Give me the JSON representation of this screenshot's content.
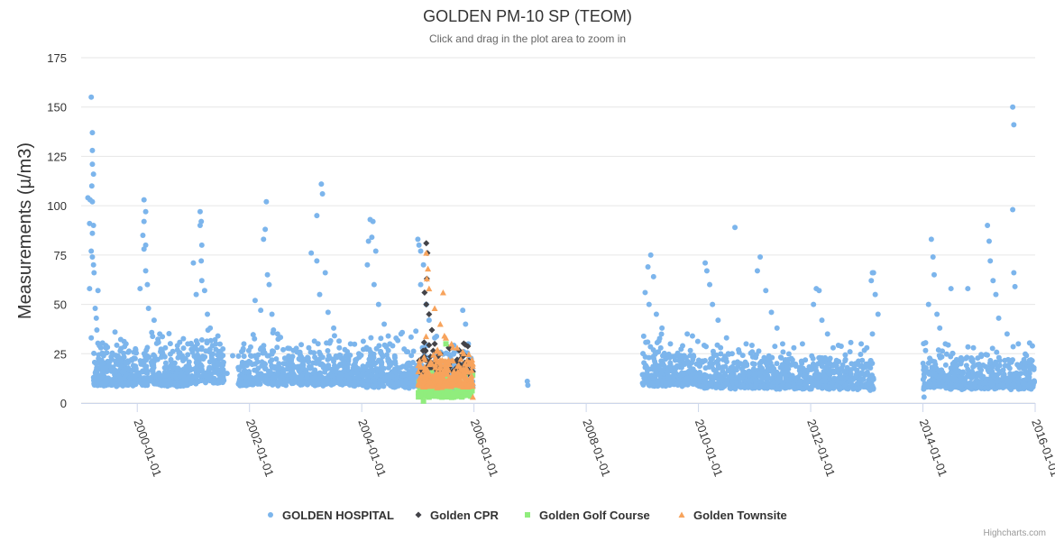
{
  "chart_data": {
    "type": "scatter",
    "title": "GOLDEN PM-10 SP (TEOM)",
    "subtitle": "Click and drag in the plot area to zoom in",
    "ylabel": "Measurements (µ/m3)",
    "xlabel": "",
    "x_range": [
      1999.0,
      2016.0
    ],
    "ylim": [
      0,
      175
    ],
    "yticks": [
      0,
      25,
      50,
      75,
      100,
      125,
      150,
      175
    ],
    "xticks": [
      {
        "value": 2000.0,
        "label": "2000-01-01"
      },
      {
        "value": 2002.0,
        "label": "2002-01-01"
      },
      {
        "value": 2004.0,
        "label": "2004-01-01"
      },
      {
        "value": 2006.0,
        "label": "2006-01-01"
      },
      {
        "value": 2008.0,
        "label": "2008-01-01"
      },
      {
        "value": 2010.0,
        "label": "2010-01-01"
      },
      {
        "value": 2012.0,
        "label": "2012-01-01"
      },
      {
        "value": 2014.0,
        "label": "2014-01-01"
      },
      {
        "value": 2016.0,
        "label": "2016-01-01"
      }
    ],
    "grid": true,
    "legend_position": "bottom-center",
    "credit": "Highcharts.com",
    "series": [
      {
        "name": "GOLDEN HOSPITAL",
        "color": "#7cb5ec",
        "marker": "circle",
        "points": [
          [
            1999.12,
            104
          ],
          [
            1999.18,
            155
          ],
          [
            1999.2,
            137
          ],
          [
            1999.2,
            128
          ],
          [
            1999.2,
            121
          ],
          [
            1999.22,
            116
          ],
          [
            1999.19,
            110
          ],
          [
            1999.16,
            103
          ],
          [
            1999.2,
            102
          ],
          [
            1999.15,
            91
          ],
          [
            1999.22,
            90
          ],
          [
            1999.2,
            86
          ],
          [
            1999.18,
            77
          ],
          [
            1999.2,
            74
          ],
          [
            1999.22,
            70
          ],
          [
            1999.23,
            66
          ],
          [
            1999.15,
            58
          ],
          [
            1999.3,
            57
          ],
          [
            1999.25,
            48
          ],
          [
            1999.27,
            43
          ],
          [
            1999.28,
            37
          ],
          [
            1999.18,
            33
          ],
          [
            1999.35,
            28
          ],
          [
            1999.4,
            24
          ],
          [
            1999.5,
            19
          ],
          [
            1999.6,
            15
          ],
          [
            1999.7,
            12
          ],
          [
            1999.8,
            30
          ],
          [
            1999.9,
            22
          ],
          [
            1999.95,
            18
          ],
          [
            2000.12,
            103
          ],
          [
            2000.15,
            97
          ],
          [
            2000.12,
            92
          ],
          [
            2000.1,
            85
          ],
          [
            2000.15,
            80
          ],
          [
            2000.12,
            78
          ],
          [
            2000.15,
            67
          ],
          [
            2000.18,
            60
          ],
          [
            2000.05,
            58
          ],
          [
            2000.2,
            48
          ],
          [
            2000.3,
            42
          ],
          [
            2000.4,
            35
          ],
          [
            2000.5,
            28
          ],
          [
            2000.6,
            22
          ],
          [
            2000.7,
            15
          ],
          [
            2000.8,
            24
          ],
          [
            2000.9,
            30
          ],
          [
            2000.95,
            10
          ],
          [
            2001.12,
            97
          ],
          [
            2001.14,
            92
          ],
          [
            2001.12,
            90
          ],
          [
            2001.15,
            80
          ],
          [
            2001.14,
            72
          ],
          [
            2001.0,
            71
          ],
          [
            2001.15,
            62
          ],
          [
            2001.2,
            57
          ],
          [
            2001.05,
            55
          ],
          [
            2001.25,
            45
          ],
          [
            2001.3,
            38
          ],
          [
            2001.4,
            30
          ],
          [
            2001.5,
            20
          ],
          [
            2001.6,
            15
          ],
          [
            2001.7,
            24
          ],
          [
            2001.8,
            18
          ],
          [
            2001.9,
            30
          ],
          [
            2002.3,
            102
          ],
          [
            2002.28,
            88
          ],
          [
            2002.25,
            83
          ],
          [
            2002.32,
            65
          ],
          [
            2002.35,
            60
          ],
          [
            2002.1,
            52
          ],
          [
            2002.2,
            47
          ],
          [
            2002.4,
            45
          ],
          [
            2002.5,
            35
          ],
          [
            2002.6,
            27
          ],
          [
            2002.7,
            20
          ],
          [
            2002.8,
            14
          ],
          [
            2002.9,
            22
          ],
          [
            2003.28,
            111
          ],
          [
            2003.3,
            106
          ],
          [
            2003.2,
            95
          ],
          [
            2003.1,
            76
          ],
          [
            2003.2,
            72
          ],
          [
            2003.35,
            66
          ],
          [
            2003.25,
            55
          ],
          [
            2003.4,
            46
          ],
          [
            2003.5,
            38
          ],
          [
            2003.6,
            28
          ],
          [
            2003.7,
            20
          ],
          [
            2003.8,
            30
          ],
          [
            2003.9,
            15
          ],
          [
            2004.15,
            93
          ],
          [
            2004.2,
            92
          ],
          [
            2004.18,
            84
          ],
          [
            2004.12,
            82
          ],
          [
            2004.25,
            77
          ],
          [
            2004.1,
            70
          ],
          [
            2004.22,
            60
          ],
          [
            2004.3,
            50
          ],
          [
            2004.4,
            40
          ],
          [
            2004.5,
            30
          ],
          [
            2004.6,
            20
          ],
          [
            2004.7,
            35
          ],
          [
            2004.8,
            26
          ],
          [
            2004.9,
            16
          ],
          [
            2005.0,
            83
          ],
          [
            2005.02,
            80
          ],
          [
            2005.05,
            77
          ],
          [
            2005.1,
            70
          ],
          [
            2005.05,
            60
          ],
          [
            2005.15,
            50
          ],
          [
            2005.2,
            42
          ],
          [
            2005.3,
            33
          ],
          [
            2005.4,
            25
          ],
          [
            2005.5,
            18
          ],
          [
            2005.6,
            28
          ],
          [
            2005.7,
            21
          ],
          [
            2005.8,
            47
          ],
          [
            2005.85,
            40
          ],
          [
            2005.9,
            30
          ],
          [
            2005.95,
            22
          ],
          [
            2005.98,
            8
          ],
          [
            2006.95,
            11
          ],
          [
            2006.96,
            9
          ],
          [
            2009.15,
            75
          ],
          [
            2009.1,
            69
          ],
          [
            2009.2,
            64
          ],
          [
            2009.05,
            56
          ],
          [
            2009.12,
            50
          ],
          [
            2009.25,
            45
          ],
          [
            2009.35,
            38
          ],
          [
            2009.5,
            30
          ],
          [
            2009.6,
            24
          ],
          [
            2009.7,
            18
          ],
          [
            2009.8,
            35
          ],
          [
            2009.9,
            22
          ],
          [
            2010.12,
            71
          ],
          [
            2010.15,
            67
          ],
          [
            2010.2,
            60
          ],
          [
            2010.25,
            50
          ],
          [
            2010.35,
            42
          ],
          [
            2010.5,
            33
          ],
          [
            2010.6,
            25
          ],
          [
            2010.65,
            89
          ],
          [
            2010.75,
            20
          ],
          [
            2010.85,
            30
          ],
          [
            2010.9,
            15
          ],
          [
            2011.1,
            74
          ],
          [
            2011.05,
            67
          ],
          [
            2011.2,
            57
          ],
          [
            2011.3,
            46
          ],
          [
            2011.4,
            38
          ],
          [
            2011.5,
            30
          ],
          [
            2011.6,
            22
          ],
          [
            2011.7,
            28
          ],
          [
            2011.8,
            18
          ],
          [
            2011.9,
            14
          ],
          [
            2012.1,
            58
          ],
          [
            2012.15,
            57
          ],
          [
            2012.05,
            50
          ],
          [
            2012.2,
            42
          ],
          [
            2012.3,
            35
          ],
          [
            2012.4,
            28
          ],
          [
            2012.5,
            21
          ],
          [
            2012.6,
            16
          ],
          [
            2012.7,
            26
          ],
          [
            2012.8,
            20
          ],
          [
            2012.9,
            30
          ],
          [
            2013.1,
            66
          ],
          [
            2013.12,
            66
          ],
          [
            2013.08,
            62
          ],
          [
            2013.15,
            55
          ],
          [
            2013.2,
            45
          ],
          [
            2013.1,
            35
          ],
          [
            2013.0,
            28
          ],
          [
            2013.05,
            20
          ],
          [
            2013.12,
            12
          ],
          [
            2014.15,
            83
          ],
          [
            2014.18,
            74
          ],
          [
            2014.2,
            65
          ],
          [
            2014.1,
            50
          ],
          [
            2014.25,
            45
          ],
          [
            2014.3,
            38
          ],
          [
            2014.4,
            30
          ],
          [
            2014.5,
            58
          ],
          [
            2014.6,
            22
          ],
          [
            2014.7,
            15
          ],
          [
            2014.8,
            58
          ],
          [
            2014.9,
            28
          ],
          [
            2014.02,
            3
          ],
          [
            2015.15,
            90
          ],
          [
            2015.18,
            82
          ],
          [
            2015.2,
            72
          ],
          [
            2015.25,
            62
          ],
          [
            2015.3,
            55
          ],
          [
            2015.35,
            43
          ],
          [
            2015.5,
            35
          ],
          [
            2015.6,
            150
          ],
          [
            2015.62,
            141
          ],
          [
            2015.6,
            98
          ],
          [
            2015.62,
            66
          ],
          [
            2015.64,
            59
          ],
          [
            2015.7,
            30
          ],
          [
            2015.8,
            22
          ],
          [
            2015.9,
            15
          ],
          [
            2015.95,
            8
          ]
        ],
        "clusters": [
          {
            "x": [
              1999.22,
              1999.99
            ],
            "y": [
              5,
              42
            ],
            "n": 260
          },
          {
            "x": [
              2000.01,
              2000.99
            ],
            "y": [
              5,
              42
            ],
            "n": 270
          },
          {
            "x": [
              2001.01,
              2001.55
            ],
            "y": [
              6,
              42
            ],
            "n": 170
          },
          {
            "x": [
              2001.8,
              2002.99
            ],
            "y": [
              5,
              42
            ],
            "n": 300
          },
          {
            "x": [
              2003.0,
              2003.99
            ],
            "y": [
              5,
              42
            ],
            "n": 280
          },
          {
            "x": [
              2004.0,
              2004.99
            ],
            "y": [
              4,
              42
            ],
            "n": 280
          },
          {
            "x": [
              2005.0,
              2005.99
            ],
            "y": [
              3,
              40
            ],
            "n": 220
          },
          {
            "x": [
              2009.0,
              2009.99
            ],
            "y": [
              5,
              40
            ],
            "n": 270
          },
          {
            "x": [
              2010.0,
              2010.99
            ],
            "y": [
              4,
              38
            ],
            "n": 270
          },
          {
            "x": [
              2011.0,
              2011.99
            ],
            "y": [
              4,
              35
            ],
            "n": 270
          },
          {
            "x": [
              2012.0,
              2012.99
            ],
            "y": [
              4,
              35
            ],
            "n": 270
          },
          {
            "x": [
              2013.0,
              2013.12
            ],
            "y": [
              4,
              30
            ],
            "n": 40
          },
          {
            "x": [
              2014.0,
              2014.99
            ],
            "y": [
              4,
              35
            ],
            "n": 270
          },
          {
            "x": [
              2015.0,
              2015.99
            ],
            "y": [
              4,
              35
            ],
            "n": 270
          }
        ]
      },
      {
        "name": "Golden CPR",
        "color": "#434348",
        "marker": "diamond",
        "points": [
          [
            2005.15,
            81
          ],
          [
            2005.17,
            76
          ],
          [
            2005.16,
            63
          ],
          [
            2005.12,
            56
          ],
          [
            2005.15,
            50
          ],
          [
            2005.2,
            45
          ],
          [
            2005.25,
            37
          ],
          [
            2005.3,
            30
          ],
          [
            2005.4,
            25
          ],
          [
            2005.55,
            28
          ],
          [
            2005.7,
            22
          ],
          [
            2005.8,
            18
          ],
          [
            2005.9,
            15
          ]
        ],
        "clusters": [
          {
            "x": [
              2005.02,
              2005.98
            ],
            "y": [
              12,
              35
            ],
            "n": 90
          }
        ]
      },
      {
        "name": "Golden Golf Course",
        "color": "#90ed7d",
        "marker": "square",
        "points": [
          [
            2005.1,
            1
          ],
          [
            2005.2,
            3
          ],
          [
            2005.5,
            30
          ]
        ],
        "clusters": [
          {
            "x": [
              2005.0,
              2005.98
            ],
            "y": [
              1,
              20
            ],
            "n": 190
          }
        ]
      },
      {
        "name": "Golden Townsite",
        "color": "#f7a35c",
        "marker": "triangle",
        "points": [
          [
            2005.15,
            76
          ],
          [
            2005.18,
            68
          ],
          [
            2005.16,
            63
          ],
          [
            2005.2,
            58
          ],
          [
            2005.45,
            56
          ],
          [
            2005.3,
            48
          ],
          [
            2005.4,
            40
          ],
          [
            2005.5,
            33
          ],
          [
            2005.6,
            30
          ],
          [
            2005.7,
            28
          ],
          [
            2005.8,
            26
          ],
          [
            2005.9,
            20
          ],
          [
            2005.98,
            3
          ]
        ],
        "clusters": [
          {
            "x": [
              2005.0,
              2005.98
            ],
            "y": [
              5,
              35
            ],
            "n": 300
          }
        ]
      }
    ]
  }
}
